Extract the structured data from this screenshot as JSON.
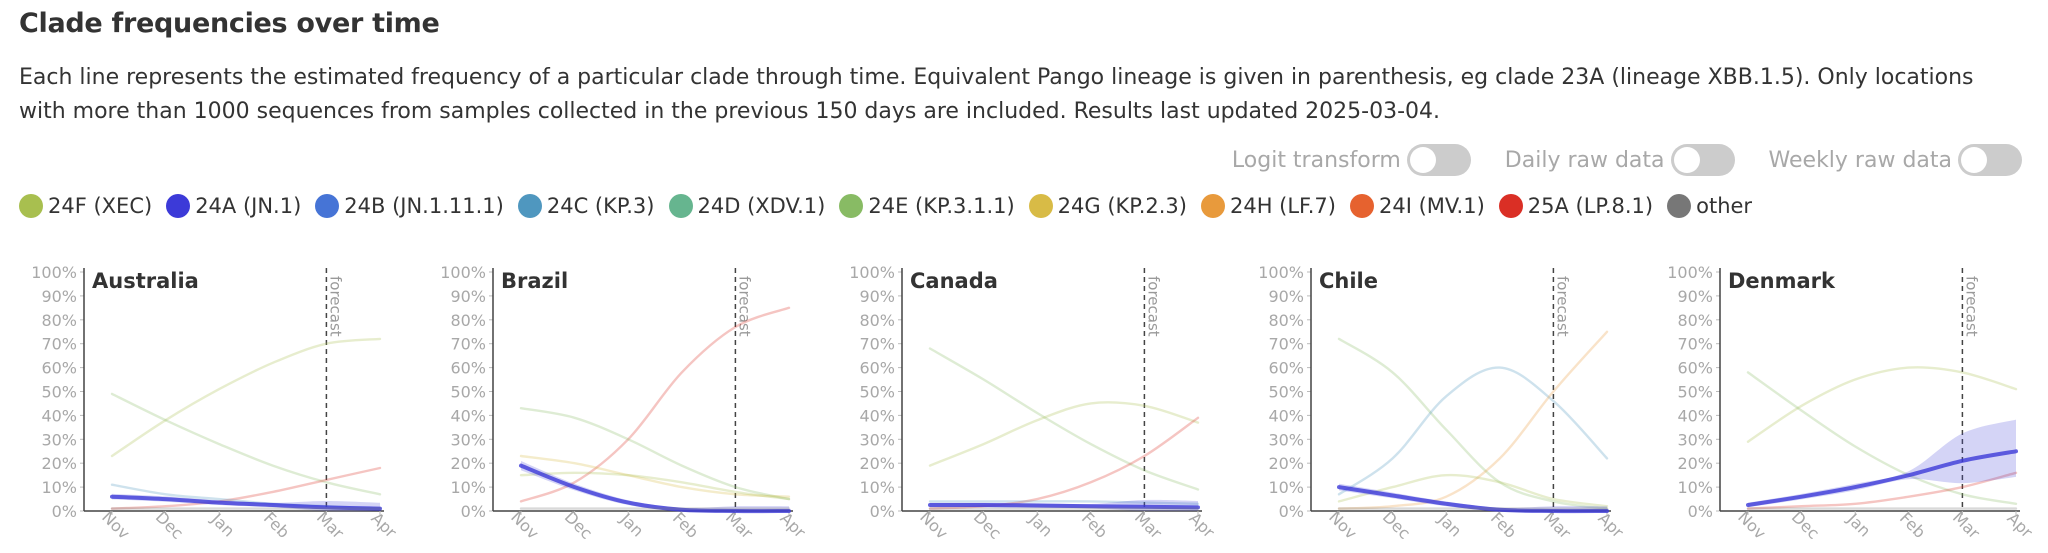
{
  "title": "Clade frequencies over time",
  "description": "Each line represents the estimated frequency of a particular clade through time. Equivalent Pango lineage is given in parenthesis, eg clade 23A (lineage XBB.1.5). Only locations with more than 1000 sequences from samples collected in the previous 150 days are included. Results last updated 2025-03-04.",
  "toggles": [
    {
      "label": "Logit transform",
      "on": false
    },
    {
      "label": "Daily raw data",
      "on": false
    },
    {
      "label": "Weekly raw data",
      "on": false
    }
  ],
  "legend": [
    {
      "label": "24F (XEC)",
      "color": "#a8bf4f"
    },
    {
      "label": "24A (JN.1)",
      "color": "#3c3ad8"
    },
    {
      "label": "24B (JN.1.11.1)",
      "color": "#4674d6"
    },
    {
      "label": "24C (KP.3)",
      "color": "#4f97bf"
    },
    {
      "label": "24D (XDV.1)",
      "color": "#66b58f"
    },
    {
      "label": "24E (KP.3.1.1)",
      "color": "#88bb64"
    },
    {
      "label": "24G (KP.2.3)",
      "color": "#d8bb46"
    },
    {
      "label": "24H (LF.7)",
      "color": "#e89a3c"
    },
    {
      "label": "24I (MV.1)",
      "color": "#e6622f"
    },
    {
      "label": "25A (LP.8.1)",
      "color": "#da2f25"
    },
    {
      "label": "other",
      "color": "#777777"
    }
  ],
  "chart_data": [
    {
      "type": "line",
      "title": "Australia",
      "x": [
        "Nov",
        "Dec",
        "Jan",
        "Feb",
        "Mar",
        "Apr"
      ],
      "ylim": [
        0,
        100
      ],
      "yticks": [
        "0%",
        "10%",
        "20%",
        "30%",
        "40%",
        "50%",
        "60%",
        "70%",
        "80%",
        "90%",
        "100%"
      ],
      "forecast_label": "forecast",
      "forecast_at": 4,
      "highlight": "24A (JN.1)",
      "series": [
        {
          "name": "24F (XEC)",
          "values": [
            23,
            38,
            51,
            62,
            70,
            72
          ]
        },
        {
          "name": "24E (KP.3.1.1)",
          "values": [
            49,
            38,
            28,
            19,
            12,
            7
          ]
        },
        {
          "name": "25A (LP.8.1)",
          "values": [
            1,
            2,
            4,
            8,
            13,
            18
          ]
        },
        {
          "name": "24C (KP.3)",
          "values": [
            11,
            7,
            5,
            3,
            2,
            1
          ]
        },
        {
          "name": "24A (JN.1)",
          "values": [
            6,
            5,
            3.5,
            2.5,
            1.5,
            1
          ]
        },
        {
          "name": "other",
          "values": [
            1,
            1,
            1,
            1,
            1,
            1
          ]
        }
      ]
    },
    {
      "type": "line",
      "title": "Brazil",
      "x": [
        "Nov",
        "Dec",
        "Jan",
        "Feb",
        "Mar",
        "Apr"
      ],
      "ylim": [
        0,
        100
      ],
      "yticks": [
        "0%",
        "10%",
        "20%",
        "30%",
        "40%",
        "50%",
        "60%",
        "70%",
        "80%",
        "90%",
        "100%"
      ],
      "forecast_label": "forecast",
      "forecast_at": 4,
      "highlight": "24A (JN.1)",
      "series": [
        {
          "name": "25A (LP.8.1)",
          "values": [
            4,
            12,
            30,
            58,
            77,
            85
          ]
        },
        {
          "name": "24E (KP.3.1.1)",
          "values": [
            43,
            39,
            30,
            19,
            10,
            5
          ]
        },
        {
          "name": "24G (KP.2.3)",
          "values": [
            23,
            20,
            15,
            10,
            7,
            6
          ]
        },
        {
          "name": "24F (XEC)",
          "values": [
            15,
            16,
            15,
            12,
            8,
            5
          ]
        },
        {
          "name": "24A (JN.1)",
          "values": [
            19,
            10,
            3.5,
            0.5,
            0,
            0
          ]
        },
        {
          "name": "other",
          "values": [
            1,
            1,
            1,
            1,
            1,
            1
          ]
        }
      ]
    },
    {
      "type": "line",
      "title": "Canada",
      "x": [
        "Nov",
        "Dec",
        "Jan",
        "Feb",
        "Mar",
        "Apr"
      ],
      "ylim": [
        0,
        100
      ],
      "yticks": [
        "0%",
        "10%",
        "20%",
        "30%",
        "40%",
        "50%",
        "60%",
        "70%",
        "80%",
        "90%",
        "100%"
      ],
      "forecast_label": "forecast",
      "forecast_at": 4,
      "highlight": "24A (JN.1)",
      "series": [
        {
          "name": "24E (KP.3.1.1)",
          "values": [
            68,
            55,
            41,
            28,
            17,
            9
          ]
        },
        {
          "name": "24F (XEC)",
          "values": [
            19,
            28,
            38,
            45,
            44,
            37
          ]
        },
        {
          "name": "25A (LP.8.1)",
          "values": [
            1,
            2,
            5,
            12,
            23,
            39
          ]
        },
        {
          "name": "24C (KP.3)",
          "values": [
            4,
            4,
            4,
            4,
            3.5,
            3
          ]
        },
        {
          "name": "24A (JN.1)",
          "values": [
            2.5,
            2.5,
            2.3,
            2,
            1.8,
            1.5
          ]
        },
        {
          "name": "other",
          "values": [
            1,
            1,
            1,
            1,
            1,
            1
          ]
        }
      ]
    },
    {
      "type": "line",
      "title": "Chile",
      "x": [
        "Nov",
        "Dec",
        "Jan",
        "Feb",
        "Mar",
        "Apr"
      ],
      "ylim": [
        0,
        100
      ],
      "yticks": [
        "0%",
        "10%",
        "20%",
        "30%",
        "40%",
        "50%",
        "60%",
        "70%",
        "80%",
        "90%",
        "100%"
      ],
      "forecast_label": "forecast",
      "forecast_at": 4,
      "highlight": "24A (JN.1)",
      "series": [
        {
          "name": "24E (KP.3.1.1)",
          "values": [
            72,
            58,
            34,
            12,
            4,
            1
          ]
        },
        {
          "name": "24C (KP.3)",
          "values": [
            7,
            22,
            48,
            60,
            46,
            22
          ]
        },
        {
          "name": "24H (LF.7)",
          "values": [
            1,
            2,
            6,
            22,
            50,
            75
          ]
        },
        {
          "name": "24F (XEC)",
          "values": [
            4,
            10,
            15,
            12,
            5,
            2
          ]
        },
        {
          "name": "24A (JN.1)",
          "values": [
            10,
            6.5,
            3,
            0.5,
            0,
            0
          ]
        },
        {
          "name": "other",
          "values": [
            1,
            1,
            1,
            1,
            1,
            1
          ]
        }
      ]
    },
    {
      "type": "line",
      "title": "Denmark",
      "x": [
        "Nov",
        "Dec",
        "Jan",
        "Feb",
        "Mar",
        "Apr"
      ],
      "ylim": [
        0,
        100
      ],
      "yticks": [
        "0%",
        "10%",
        "20%",
        "30%",
        "40%",
        "50%",
        "60%",
        "70%",
        "80%",
        "90%",
        "100%"
      ],
      "forecast_label": "forecast",
      "forecast_at": 4,
      "highlight": "24A (JN.1)",
      "series": [
        {
          "name": "24F (XEC)",
          "values": [
            29,
            44,
            55,
            60,
            58,
            51
          ]
        },
        {
          "name": "24E (KP.3.1.1)",
          "values": [
            58,
            42,
            27,
            15,
            7,
            3
          ]
        },
        {
          "name": "25A (LP.8.1)",
          "values": [
            1,
            2,
            3,
            6,
            10,
            16
          ]
        },
        {
          "name": "24A (JN.1)",
          "values": [
            2.5,
            6,
            10,
            15,
            21,
            25
          ]
        },
        {
          "name": "other",
          "values": [
            1,
            1,
            1,
            1,
            1,
            1
          ]
        }
      ]
    }
  ]
}
